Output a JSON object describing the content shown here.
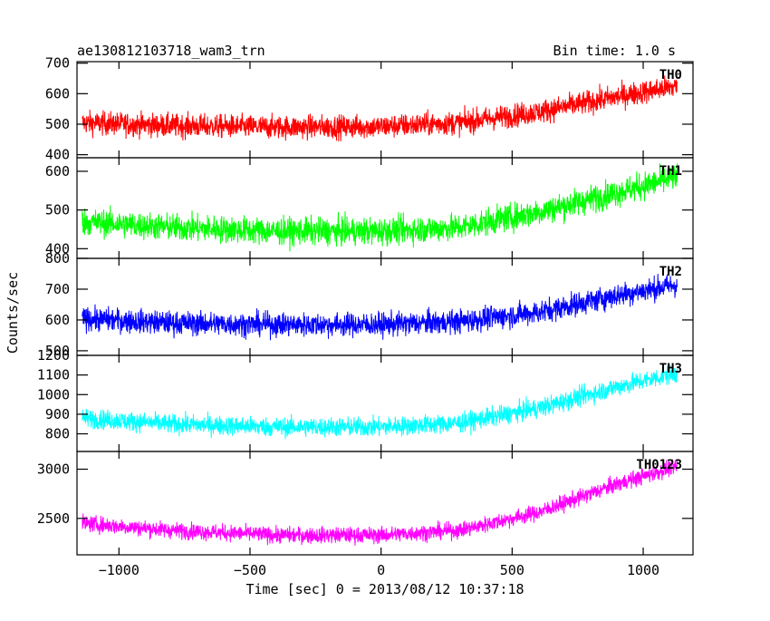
{
  "header": {
    "title": "ae130812103718_wam3_trn",
    "bin_time": "Bin time: 1.0 s"
  },
  "chart_data": {
    "type": "line",
    "title": "ae130812103718_wam3_trn",
    "subtitle": "Bin time: 1.0 s",
    "xlabel": "Time [sec] 0 = 2013/08/12 10:37:18",
    "ylabel": "Counts/sec",
    "xlim": [
      -1160,
      1190
    ],
    "x_ticks": [
      -1000,
      -500,
      0,
      500,
      1000
    ],
    "x_tick_labels": [
      "−1000",
      "−500",
      "0",
      "500",
      "1000"
    ],
    "x_range": [
      -1140,
      1130
    ],
    "grid": false,
    "panels": [
      {
        "name": "TH0",
        "color": "#ff0000",
        "ylim": [
          390,
          705
        ],
        "y_ticks": [
          400,
          500,
          600,
          700
        ],
        "y_tick_labels": [
          "400",
          "500",
          "600",
          "700"
        ],
        "trend": {
          "x": [
            -1140,
            -800,
            -400,
            0,
            300,
            600,
            900,
            1130
          ],
          "y": [
            505,
            495,
            490,
            492,
            505,
            540,
            590,
            625
          ]
        },
        "noise": 35
      },
      {
        "name": "TH1",
        "color": "#00ff00",
        "ylim": [
          375,
          635
        ],
        "y_ticks": [
          400,
          500,
          600
        ],
        "y_tick_labels": [
          "400",
          "500",
          "600"
        ],
        "trend": {
          "x": [
            -1140,
            -800,
            -400,
            0,
            300,
            600,
            900,
            1130
          ],
          "y": [
            470,
            455,
            445,
            445,
            455,
            495,
            545,
            585
          ]
        },
        "noise": 32
      },
      {
        "name": "TH2",
        "color": "#0000ff",
        "ylim": [
          485,
          800
        ],
        "y_ticks": [
          500,
          600,
          700,
          800
        ],
        "y_tick_labels": [
          "500",
          "600",
          "700",
          "800"
        ],
        "trend": {
          "x": [
            -1140,
            -800,
            -400,
            0,
            300,
            600,
            900,
            1130
          ],
          "y": [
            605,
            590,
            585,
            585,
            595,
            625,
            680,
            715
          ]
        },
        "noise": 35
      },
      {
        "name": "TH3",
        "color": "#00ffff",
        "ylim": [
          710,
          1200
        ],
        "y_ticks": [
          800,
          900,
          1000,
          1100,
          1200
        ],
        "y_tick_labels": [
          "800",
          "900",
          "1000",
          "1100",
          "1200"
        ],
        "trend": {
          "x": [
            -1140,
            -800,
            -400,
            0,
            300,
            600,
            900,
            1130
          ],
          "y": [
            880,
            850,
            835,
            835,
            855,
            930,
            1040,
            1110
          ]
        },
        "noise": 45
      },
      {
        "name": "TH0123",
        "color": "#ff00ff",
        "ylim": [
          2130,
          3180
        ],
        "y_ticks": [
          2500,
          3000
        ],
        "y_tick_labels": [
          "2500",
          "3000"
        ],
        "trend": {
          "x": [
            -1140,
            -800,
            -400,
            0,
            300,
            600,
            900,
            1130
          ],
          "y": [
            2450,
            2380,
            2330,
            2330,
            2380,
            2560,
            2850,
            3030
          ]
        },
        "noise": 75
      }
    ]
  }
}
